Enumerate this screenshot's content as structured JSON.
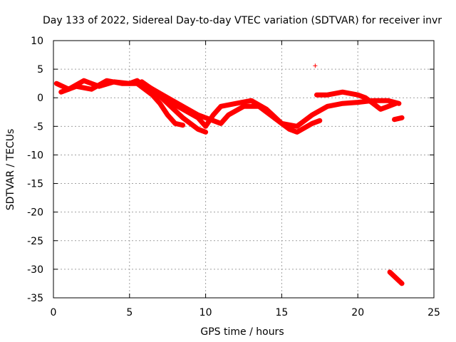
{
  "chart_data": {
    "type": "scatter",
    "title": "Day 133 of 2022, Sidereal Day-to-day VTEC variation (SDTVAR) for receiver invr",
    "xlabel": "GPS time / hours",
    "ylabel": "SDTVAR / TECUs",
    "xlim": [
      0,
      25
    ],
    "ylim": [
      -35,
      10
    ],
    "xticks": [
      0,
      5,
      10,
      15,
      20,
      25
    ],
    "yticks": [
      10,
      5,
      0,
      -5,
      -10,
      -15,
      -20,
      -25,
      -30,
      -35
    ],
    "grid": true,
    "marker": "+",
    "color": "#ff0000",
    "series": [
      {
        "name": "track-1",
        "points": [
          [
            0.2,
            2.5
          ],
          [
            1.0,
            1.5
          ],
          [
            2.0,
            3.0
          ],
          [
            3.0,
            2.0
          ],
          [
            4.0,
            2.8
          ],
          [
            5.0,
            2.5
          ],
          [
            5.5,
            3.0
          ],
          [
            6.5,
            1.0
          ],
          [
            7.5,
            -0.5
          ],
          [
            8.5,
            -2.0
          ],
          [
            9.5,
            -3.5
          ],
          [
            10.0,
            -5.0
          ],
          [
            10.5,
            -3.0
          ],
          [
            11.0,
            -1.5
          ],
          [
            12.0,
            -1.0
          ],
          [
            13.0,
            -0.5
          ],
          [
            14.0,
            -2.0
          ],
          [
            15.0,
            -4.5
          ],
          [
            16.0,
            -5.0
          ],
          [
            17.0,
            -3.0
          ],
          [
            18.0,
            -1.5
          ],
          [
            19.0,
            -1.0
          ],
          [
            20.0,
            -0.8
          ],
          [
            21.0,
            -0.5
          ],
          [
            22.0,
            -0.5
          ],
          [
            22.7,
            -1.0
          ]
        ]
      },
      {
        "name": "track-2",
        "points": [
          [
            0.5,
            1.0
          ],
          [
            1.5,
            2.0
          ],
          [
            2.5,
            1.5
          ],
          [
            3.5,
            3.0
          ],
          [
            4.5,
            2.5
          ],
          [
            5.5,
            2.5
          ],
          [
            6.5,
            0.5
          ],
          [
            7.0,
            -1.0
          ],
          [
            7.5,
            -3.0
          ],
          [
            8.0,
            -4.5
          ],
          [
            8.5,
            -4.8
          ]
        ]
      },
      {
        "name": "track-3",
        "points": [
          [
            5.8,
            2.8
          ],
          [
            6.5,
            1.5
          ],
          [
            7.5,
            -1.0
          ],
          [
            8.5,
            -3.5
          ],
          [
            9.5,
            -5.5
          ],
          [
            10.0,
            -6.0
          ]
        ]
      },
      {
        "name": "track-4",
        "points": [
          [
            6.2,
            2.0
          ],
          [
            7.5,
            0.0
          ],
          [
            8.5,
            -1.5
          ],
          [
            9.5,
            -3.0
          ],
          [
            10.5,
            -4.0
          ],
          [
            11.0,
            -4.5
          ],
          [
            11.5,
            -3.0
          ],
          [
            12.5,
            -1.5
          ],
          [
            13.5,
            -1.5
          ],
          [
            14.5,
            -3.5
          ],
          [
            15.5,
            -5.5
          ],
          [
            16.0,
            -6.0
          ],
          [
            17.0,
            -4.5
          ],
          [
            17.5,
            -4.0
          ]
        ]
      },
      {
        "name": "track-5",
        "points": [
          [
            17.3,
            0.5
          ],
          [
            18.0,
            0.5
          ],
          [
            19.0,
            1.0
          ],
          [
            20.0,
            0.5
          ],
          [
            20.5,
            0.0
          ],
          [
            21.0,
            -1.0
          ],
          [
            21.5,
            -2.0
          ],
          [
            22.0,
            -1.5
          ],
          [
            22.5,
            -1.0
          ]
        ]
      },
      {
        "name": "track-6",
        "points": [
          [
            22.4,
            -3.8
          ],
          [
            22.9,
            -3.5
          ]
        ]
      },
      {
        "name": "track-7",
        "points": [
          [
            22.1,
            -30.5
          ],
          [
            22.5,
            -31.5
          ],
          [
            22.9,
            -32.5
          ]
        ]
      },
      {
        "name": "outlier",
        "points": [
          [
            17.2,
            5.6
          ]
        ]
      }
    ]
  }
}
